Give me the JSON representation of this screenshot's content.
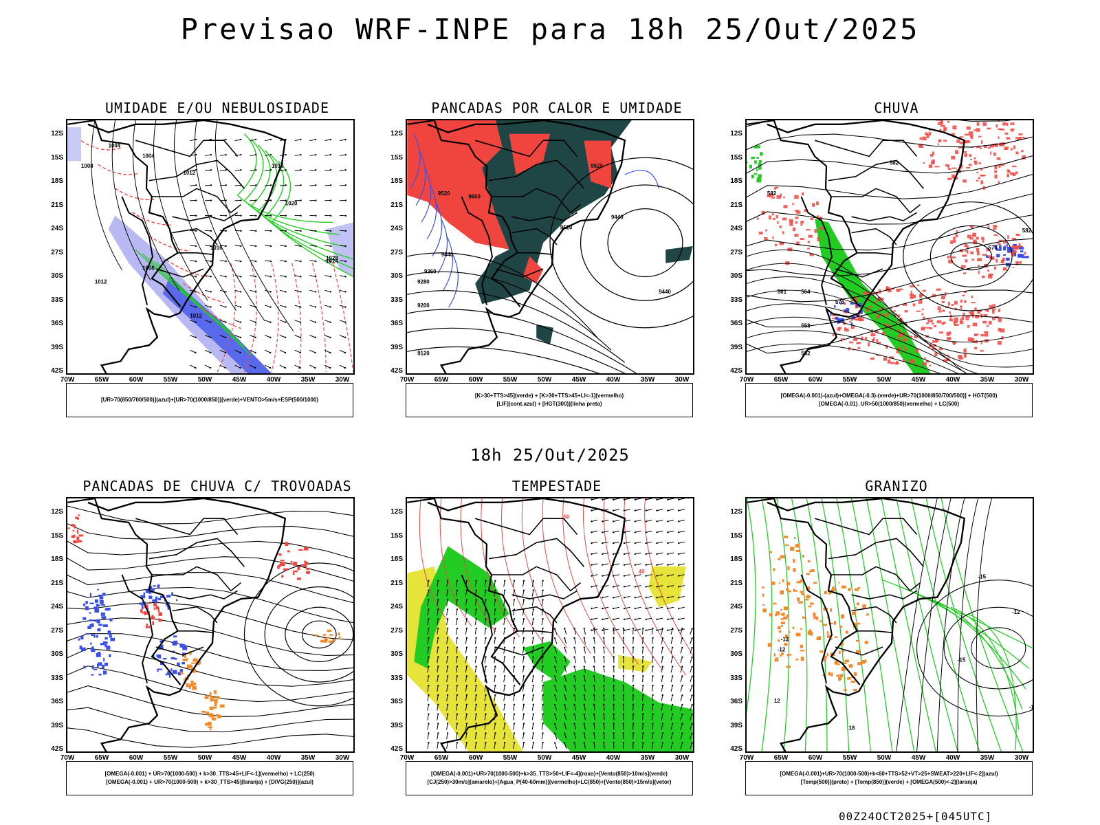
{
  "title": "Previsao WRF-INPE  para 18h 25/Out/2025",
  "subtitle": "18h 25/Out/2025",
  "footer": "00Z24OCT2025+[045UTC]",
  "axes": {
    "lat_labels": [
      "12S",
      "15S",
      "18S",
      "21S",
      "24S",
      "27S",
      "30S",
      "33S",
      "36S",
      "39S",
      "42S"
    ],
    "lon_labels": [
      "70W",
      "65W",
      "60W",
      "55W",
      "50W",
      "45W",
      "40W",
      "35W",
      "30W"
    ]
  },
  "panels": [
    {
      "title": "UMIDADE E/OU NEBULOSIDADE",
      "legend": [
        "[UR>70(850/700/500)](azul)+[UR>70(1000/850)](verde)+VENTO>5m/s+ESP(500/1000)"
      ],
      "contour_labels": [
        "1004",
        "1004",
        "1008",
        "1012",
        "1016",
        "1020",
        "1024",
        "1028",
        "1012",
        "1008",
        "1016",
        "1012"
      ]
    },
    {
      "title": "PANCADAS POR CALOR E UMIDADE",
      "legend": [
        "[K>30+TTS>45](verde) + [K>30+TTS>45+LI<-1](vermelho)",
        "[LIF](cont.azul) + [HGT(300)](linha preta)"
      ],
      "contour_labels": [
        "9520",
        "9600",
        "9520",
        "9440",
        "9360",
        "9280",
        "9200",
        "9120",
        "9440",
        "9440",
        "9520"
      ]
    },
    {
      "title": "CHUVA",
      "legend": [
        "[OMEGA(-0.001)-(azul)+OMEGA(-0.3)-(verde)+UR>70(1000/850/700/500)] + HGT(500)",
        "[OMEGA(-0.01)_UR>50(1000/850)(vermelho) + LC(500)"
      ],
      "contour_labels": [
        "582",
        "582",
        "576",
        "561",
        "564",
        "558",
        "552",
        "582",
        "570"
      ]
    },
    {
      "title": "PANCADAS DE CHUVA C/ TROVOADAS",
      "legend": [
        "[OMEGA(-0.001) + UR>70(1000-500) + k>30_TTS>45+LIF<-1](vermelho) + LC(250)",
        "[OMEGA(-0.001) + UR>70(1000-500) + k>30_TTS>45](laranja) + [DIVG(250)](azul)"
      ],
      "contour_labels": []
    },
    {
      "title": "TEMPESTADE",
      "legend": [
        "[OMEGA(-0.001)+UR>70(1000-500)+k>35_TTS>50+LIF<-4](roxo)+[Vento(850)>10m/s](verde)",
        "[CJ(250)>30m/s](amarelo)+[Agua_P(40-60mm)](vermelho)+LC(850)+[Vento(850)>15m/s](vetor)"
      ],
      "contour_labels": [
        "40",
        "50"
      ]
    },
    {
      "title": "GRANIZO",
      "legend": [
        "[OMEGA(-0.001)+UR>70(1000-500)+k<60+TTS>52+VT>25+SWEAT>220+LIF<-2](azul)",
        "[Temp(500)](preto) + [Temp(850)](verde) + [OMEGA(500)<-2](laranja)"
      ],
      "contour_labels": [
        "-12",
        "-15",
        "-12",
        "-12",
        "-15",
        "12",
        "18",
        "-15"
      ]
    }
  ],
  "colors": {
    "green": "#22cc22",
    "red": "#f0453f",
    "blue": "#3a4fe8",
    "lavender": "#a6a6f0",
    "darkteal": "#1f4545",
    "yellow": "#e6e33a",
    "orange": "#f08a2a",
    "black": "#000000"
  }
}
